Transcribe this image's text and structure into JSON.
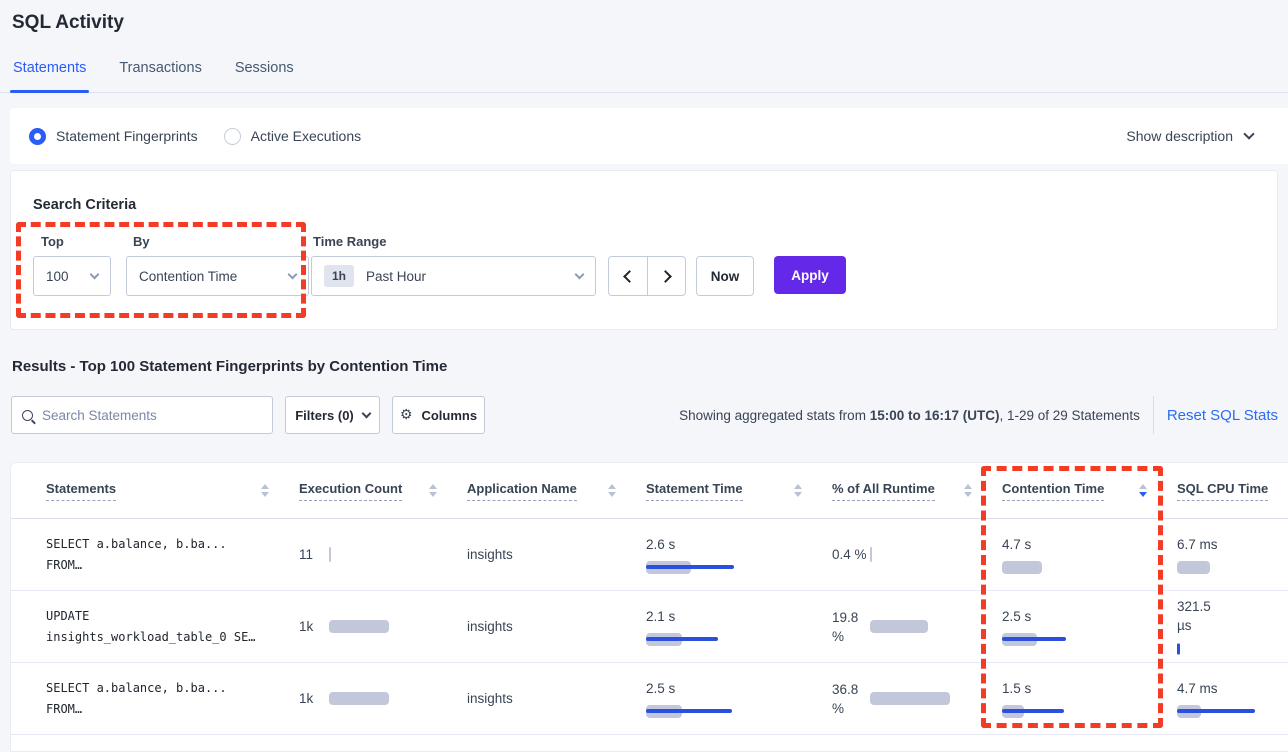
{
  "page": {
    "title": "SQL Activity"
  },
  "tabs": [
    {
      "label": "Statements",
      "active": true
    },
    {
      "label": "Transactions",
      "active": false
    },
    {
      "label": "Sessions",
      "active": false
    }
  ],
  "view_toggle": {
    "options": [
      {
        "label": "Statement Fingerprints",
        "selected": true
      },
      {
        "label": "Active Executions",
        "selected": false
      }
    ],
    "show_description": "Show description"
  },
  "search_criteria": {
    "title": "Search Criteria",
    "top": {
      "label": "Top",
      "value": "100"
    },
    "by": {
      "label": "By",
      "value": "Contention Time"
    },
    "time_range": {
      "label": "Time Range",
      "badge": "1h",
      "value": "Past Hour"
    },
    "now_label": "Now",
    "apply_label": "Apply"
  },
  "results": {
    "title": "Results - Top 100 Statement Fingerprints by Contention Time",
    "search_placeholder": "Search Statements",
    "filters_label": "Filters (0)",
    "columns_label": "Columns",
    "stats_prefix": "Showing aggregated stats from ",
    "stats_range": "15:00 to 16:17 (UTC)",
    "stats_suffix": ", 1-29 of 29 Statements",
    "reset_label": "Reset SQL Stats"
  },
  "table": {
    "headers": [
      {
        "label": "Statements",
        "sort": "none"
      },
      {
        "label": "Execution Count",
        "sort": "none"
      },
      {
        "label": "Application Name",
        "sort": "none"
      },
      {
        "label": "Statement Time",
        "sort": "none"
      },
      {
        "label": "% of All Runtime",
        "sort": "none"
      },
      {
        "label": "Contention Time",
        "sort": "desc"
      },
      {
        "label": "SQL CPU Time",
        "sort": "none"
      }
    ],
    "rows": [
      {
        "statement_line1": "SELECT a.balance, b.ba...",
        "statement_line2": "FROM…",
        "execution_count": "11",
        "application_name": "insights",
        "statement_time": "2.6 s",
        "pct_runtime": "0.4 %",
        "contention_time": "4.7 s",
        "sql_cpu_time": "6.7 ms",
        "bars": {
          "exec": {
            "gray": 2,
            "blue": 0
          },
          "stmt_time": {
            "gray": 45,
            "blue": 88
          },
          "pct": {
            "gray": 2,
            "blue": 0
          },
          "contention": {
            "gray": 40,
            "blue": 0
          },
          "cpu": {
            "gray": 33,
            "blue": 0
          }
        }
      },
      {
        "statement_line1": "UPDATE",
        "statement_line2": "insights_workload_table_0 SE…",
        "execution_count": "1k",
        "application_name": "insights",
        "statement_time": "2.1 s",
        "pct_runtime": "19.8 %",
        "contention_time": "2.5 s",
        "sql_cpu_time": "321.5 µs",
        "bars": {
          "exec": {
            "gray": 60,
            "blue": 0
          },
          "stmt_time": {
            "gray": 36,
            "blue": 72
          },
          "pct": {
            "gray": 58,
            "blue": 0
          },
          "contention": {
            "gray": 35,
            "blue": 64
          },
          "cpu": {
            "gray": 0,
            "blue": 3,
            "tick": true
          }
        }
      },
      {
        "statement_line1": "SELECT a.balance, b.ba...",
        "statement_line2": "FROM…",
        "execution_count": "1k",
        "application_name": "insights",
        "statement_time": "2.5 s",
        "pct_runtime": "36.8 %",
        "contention_time": "1.5 s",
        "sql_cpu_time": "4.7 ms",
        "bars": {
          "exec": {
            "gray": 60,
            "blue": 0
          },
          "stmt_time": {
            "gray": 36,
            "blue": 86
          },
          "pct": {
            "gray": 80,
            "blue": 0
          },
          "contention": {
            "gray": 22,
            "blue": 62
          },
          "cpu": {
            "gray": 24,
            "blue": 78
          }
        }
      }
    ]
  },
  "colors": {
    "accent_blue": "#2B5CF6",
    "link_blue": "#2A6DF4",
    "apply_purple": "#6429E8",
    "bar_gray": "#C2C8D9",
    "bar_blue": "#2B4FDE",
    "annotation_red": "#F43B26",
    "page_background": "#F5F6FA"
  }
}
